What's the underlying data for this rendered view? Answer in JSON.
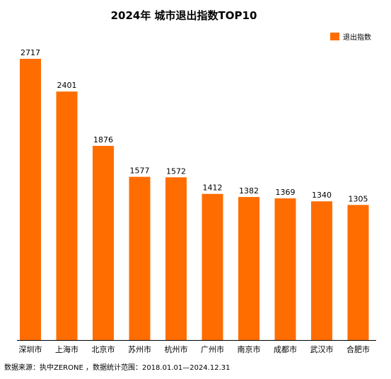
{
  "chart_data": {
    "type": "bar",
    "title": "2024年 城市退出指数TOP10",
    "categories": [
      "深圳市",
      "上海市",
      "北京市",
      "苏州市",
      "杭州市",
      "广州市",
      "南京市",
      "成都市",
      "武汉市",
      "合肥市"
    ],
    "series": [
      {
        "name": "退出指数",
        "values": [
          2717,
          2401,
          1876,
          1577,
          1572,
          1412,
          1382,
          1369,
          1340,
          1305
        ]
      }
    ],
    "xlabel": "",
    "ylabel": "",
    "ylim": [
      0,
      2717
    ],
    "grid": false,
    "legend": "top-right",
    "data_labels": true,
    "bar_color": "#FF6D00"
  },
  "footnote": "数据来源：执中ZERONE ，数据统计范围：2018.01.01—2024.12.31"
}
